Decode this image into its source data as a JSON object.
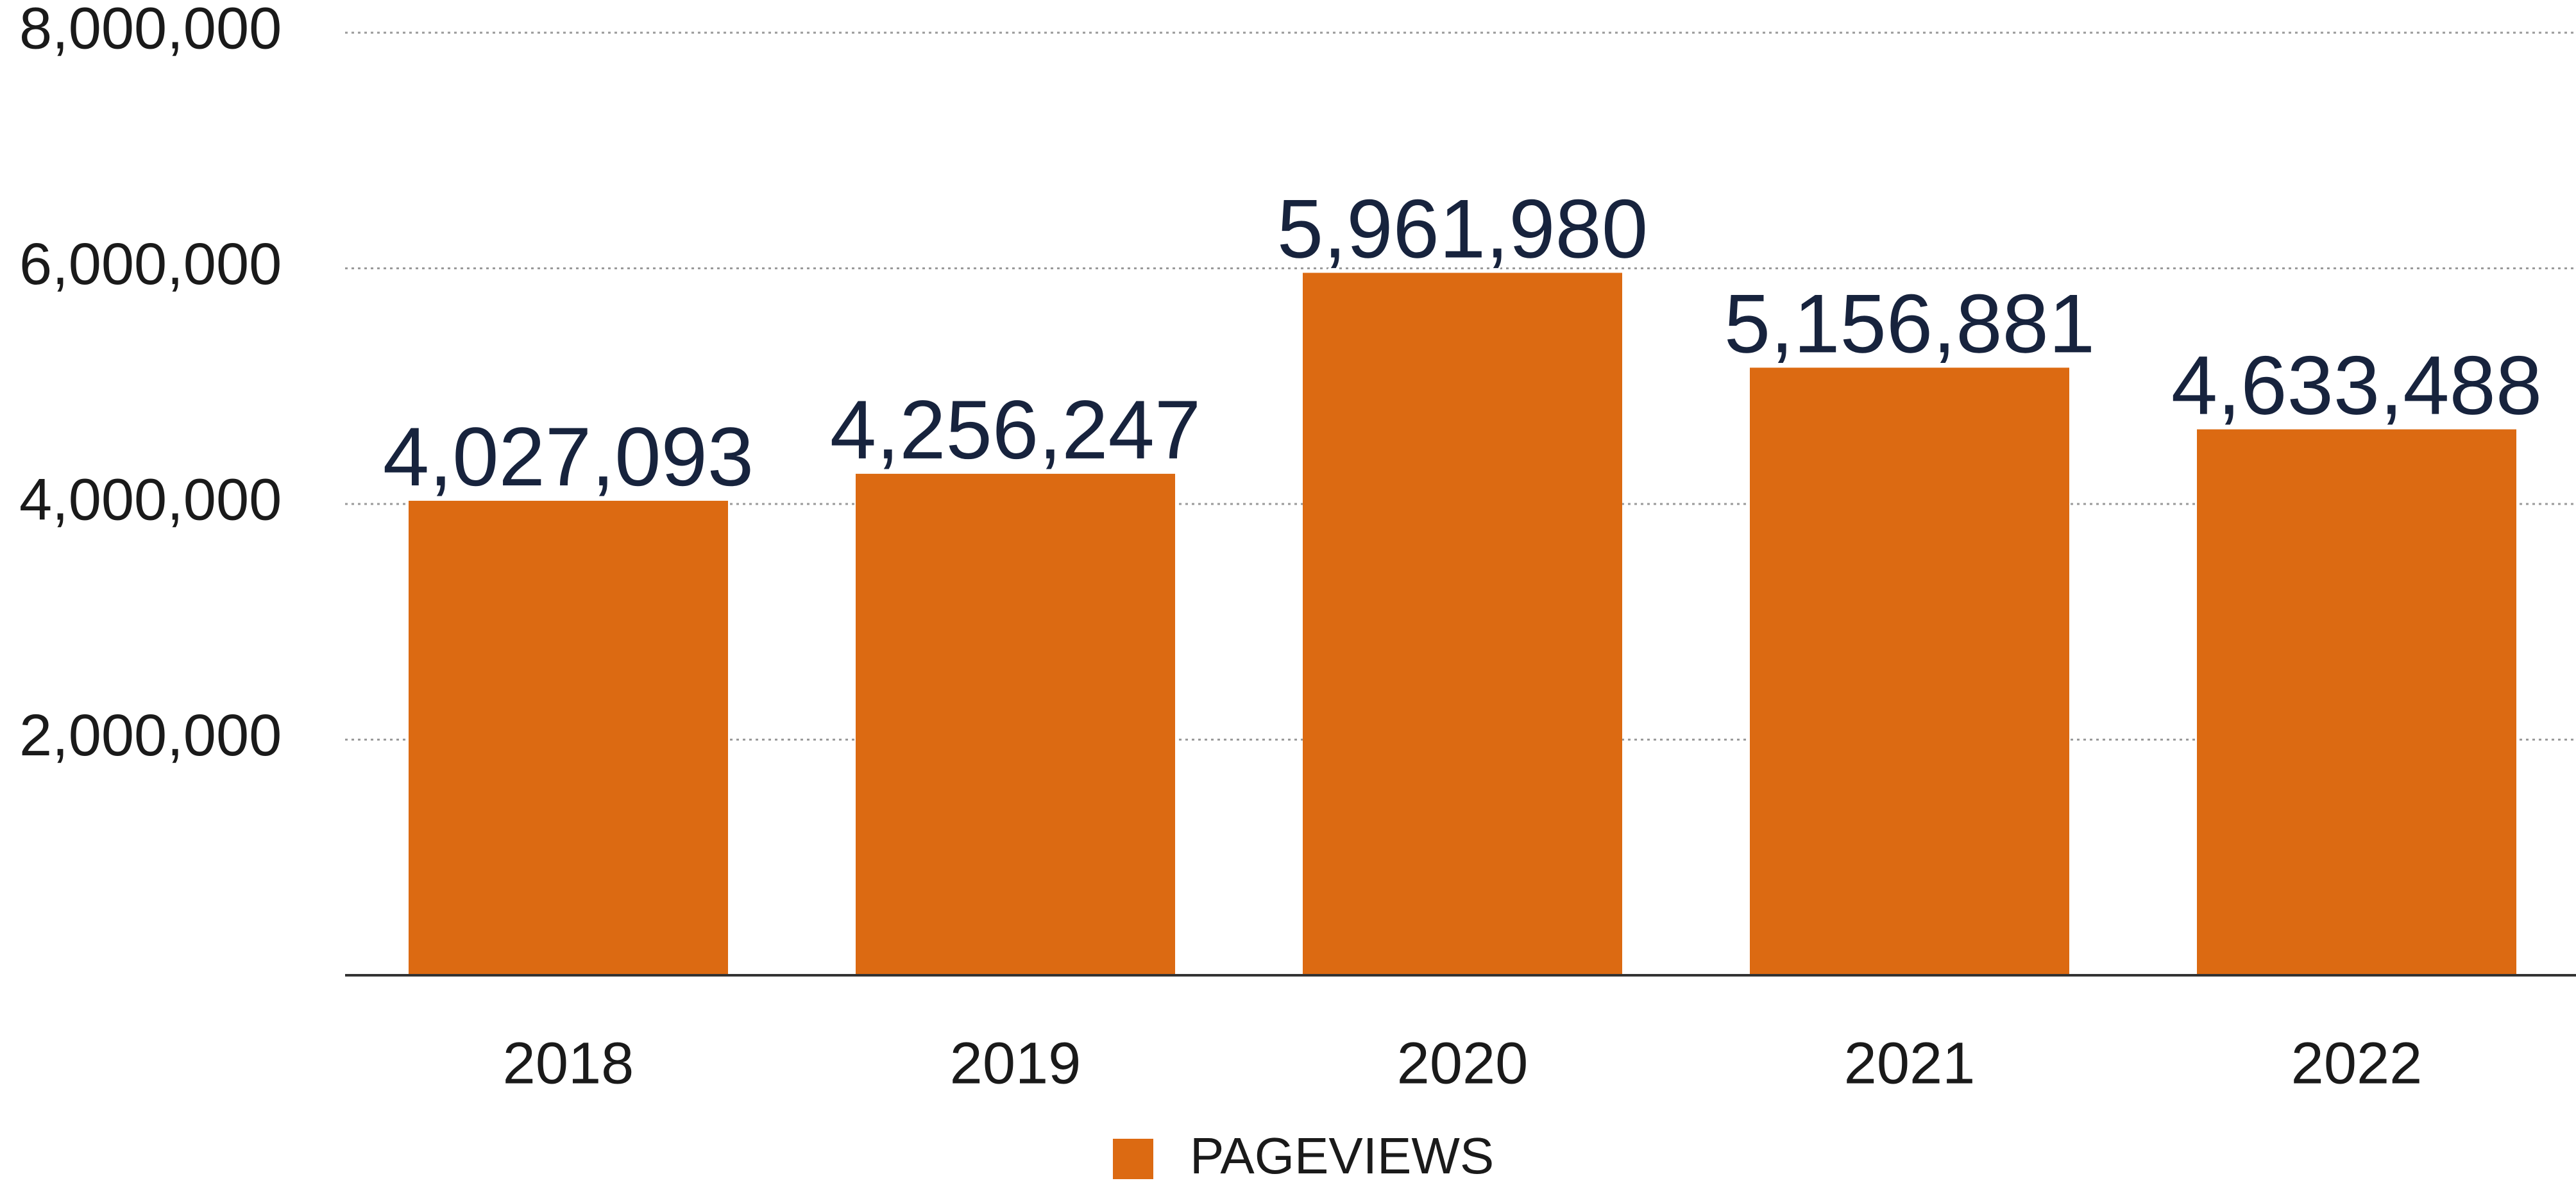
{
  "chart_data": {
    "type": "bar",
    "categories": [
      "2018",
      "2019",
      "2020",
      "2021",
      "2022"
    ],
    "series": [
      {
        "name": "PAGEVIEWS",
        "values": [
          4027093,
          4256247,
          5961980,
          5156881,
          4633488
        ],
        "labels": [
          "4,027,093",
          "4,256,247",
          "5,961,980",
          "5,156,881",
          "4,633,488"
        ],
        "color": "#DC6A12"
      }
    ],
    "ylim": [
      0,
      8000000
    ],
    "y_ticks": [
      2000000,
      4000000,
      6000000,
      8000000
    ],
    "y_tick_labels": [
      "2,000,000",
      "4,000,000",
      "6,000,000",
      "8,000,000"
    ],
    "grid": true,
    "grid_style": "dotted",
    "legend_position": "bottom-center",
    "title": "",
    "xlabel": "",
    "ylabel": ""
  },
  "legend": {
    "label": "PAGEVIEWS",
    "color": "#DC6A12"
  }
}
